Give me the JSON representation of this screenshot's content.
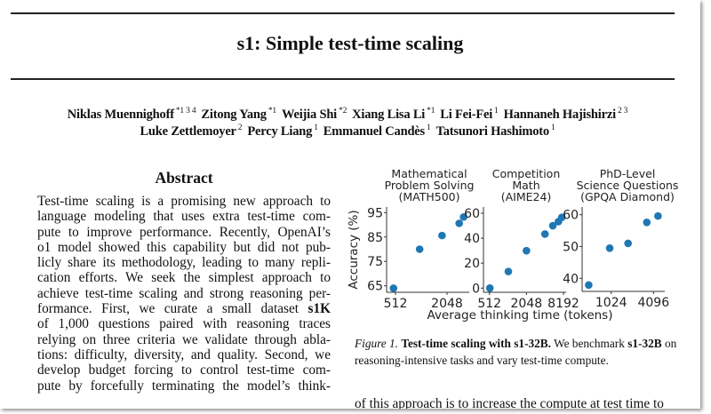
{
  "paper": {
    "title": "s1: Simple test-time scaling",
    "authors_line1": [
      {
        "name": "Niklas Muennighoff",
        "aff": "*1 3 4"
      },
      {
        "name": "Zitong Yang",
        "aff": "*1"
      },
      {
        "name": "Weijia Shi",
        "aff": "*2"
      },
      {
        "name": "Xiang Lisa Li",
        "aff": "*1"
      },
      {
        "name": "Li Fei-Fei",
        "aff": "1"
      },
      {
        "name": "Hannaneh Hajishirzi",
        "aff": "2 3"
      }
    ],
    "authors_line2": [
      {
        "name": "Luke Zettlemoyer",
        "aff": "2"
      },
      {
        "name": "Percy Liang",
        "aff": "1"
      },
      {
        "name": "Emmanuel Candès",
        "aff": "1"
      },
      {
        "name": "Tatsunori Hashimoto",
        "aff": "1"
      }
    ],
    "abstract_heading": "Abstract",
    "abstract_lines": [
      [
        {
          "t": "Test-time scaling is a promising new approach to"
        }
      ],
      [
        {
          "t": "language modeling that uses extra test-time com-"
        }
      ],
      [
        {
          "t": "pute to improve performance. Recently, OpenAI’s"
        }
      ],
      [
        {
          "t": "o1 model showed this capability but did not pub-"
        }
      ],
      [
        {
          "t": "licly share its methodology, leading to many repli-"
        }
      ],
      [
        {
          "t": "cation efforts. We seek the simplest approach to"
        }
      ],
      [
        {
          "t": "achieve test-time scaling and strong reasoning per-"
        }
      ],
      [
        {
          "t": "formance.  First, we curate a small dataset "
        },
        {
          "t": "s1K",
          "b": true
        }
      ],
      [
        {
          "t": "of 1,000 questions paired with reasoning traces"
        }
      ],
      [
        {
          "t": "relying on three criteria we validate through abla-"
        }
      ],
      [
        {
          "t": "tions: difficulty, diversity, and quality. Second, we"
        }
      ],
      [
        {
          "t": "develop budget forcing to control test-time com-"
        }
      ],
      [
        {
          "t": "pute by forcefully terminating the model’s think-"
        }
      ]
    ],
    "caption": {
      "label": "Figure 1.",
      "bold_title": "Test-time scaling with s1-32B.",
      "text1": " We benchmark ",
      "bold_model": "s1-32B",
      "text2": " on reasoning-intensive tasks and vary test-time compute."
    },
    "bottom_text": "of this approach is to increase the compute at test time to"
  },
  "chart_data": [
    {
      "type": "scatter",
      "title": "Mathematical\nProblem Solving\n(MATH500)",
      "ylabel": "Accuracy (%)",
      "xlabel": "Average thinking time (tokens)",
      "x_scale": "log2",
      "x_ticks": [
        512,
        2048
      ],
      "y_ticks": [
        65,
        75,
        85,
        95
      ],
      "color": "#1f77b4",
      "x": [
        485,
        980,
        1790,
        2840,
        3200
      ],
      "y": [
        64,
        80,
        85.6,
        90.6,
        93.2
      ]
    },
    {
      "type": "scatter",
      "title": "Competition\nMath\n(AIME24)",
      "x_scale": "log2",
      "x_ticks": [
        512,
        2048,
        8192
      ],
      "y_ticks": [
        0,
        20,
        40,
        60
      ],
      "color": "#1f77b4",
      "x": [
        520,
        1040,
        2048,
        4096,
        5500,
        6800,
        7700
      ],
      "y": [
        0,
        13.3,
        30,
        43.3,
        50,
        53.3,
        56.7
      ]
    },
    {
      "type": "scatter",
      "title": "PhD-Level\nScience Questions\n(GPQA Diamond)",
      "x_scale": "log2",
      "x_ticks": [
        1024,
        4096
      ],
      "y_ticks": [
        40,
        50,
        60
      ],
      "color": "#1f77b4",
      "x": [
        490,
        975,
        1780,
        3290,
        4750
      ],
      "y": [
        37.9,
        49.5,
        51,
        57.6,
        59.6
      ]
    }
  ]
}
